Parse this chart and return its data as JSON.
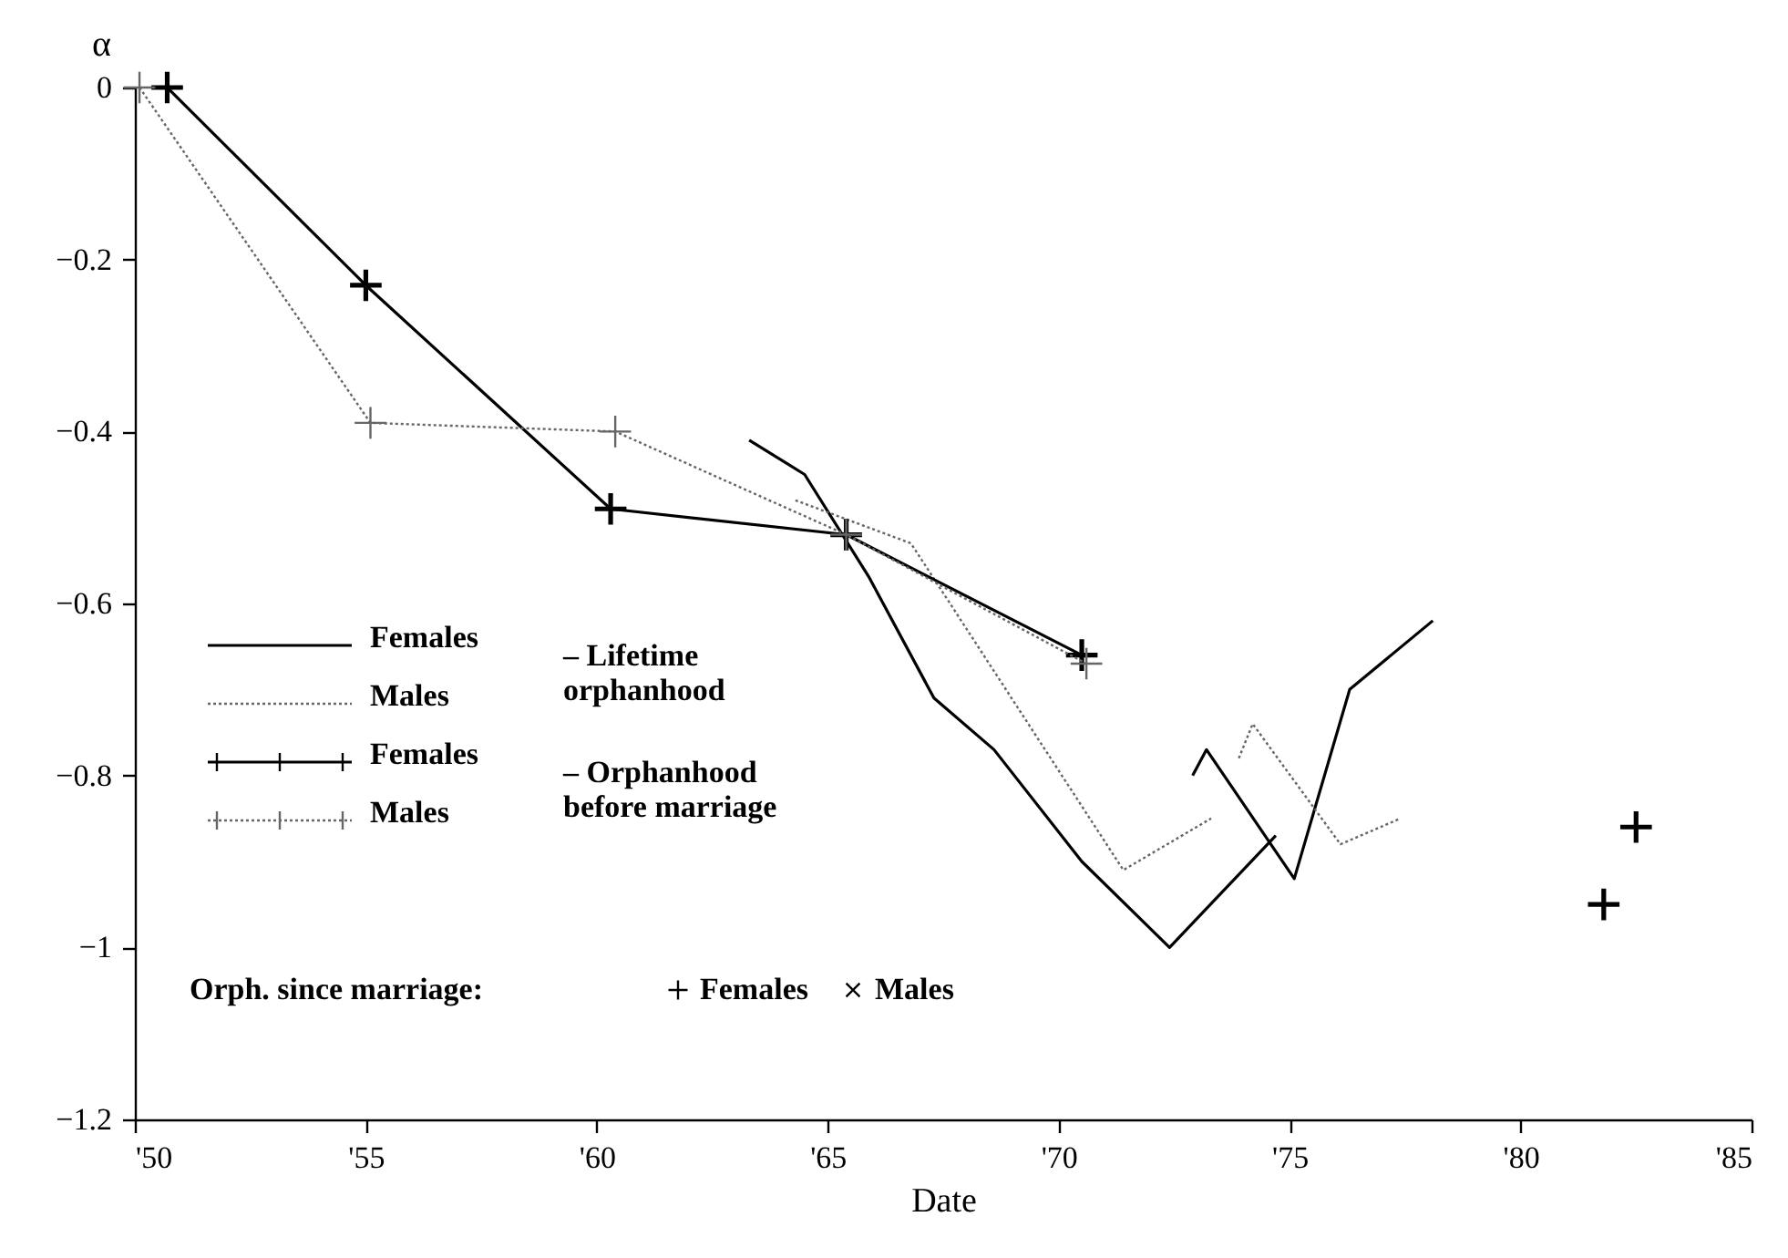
{
  "chart_data": {
    "type": "line",
    "xlabel": "Date",
    "ylabel": "α",
    "xlim": [
      50,
      85
    ],
    "xticks": [
      {
        "value": 50,
        "label": "'50"
      },
      {
        "value": 55,
        "label": "'55"
      },
      {
        "value": 60,
        "label": "'60"
      },
      {
        "value": 65,
        "label": "'65"
      },
      {
        "value": 70,
        "label": "'70"
      },
      {
        "value": 75,
        "label": "'75"
      },
      {
        "value": 80,
        "label": "'80"
      },
      {
        "value": 85,
        "label": "'85"
      }
    ],
    "ylim": [
      -1.2,
      0
    ],
    "yticks": [
      0,
      -0.2,
      -0.4,
      -0.6,
      -0.8,
      -1,
      -1.2
    ],
    "legend": "bottom left",
    "annotations": [
      "– Lifetime\norphanhood",
      "– Orphanhood\nbefore marriage",
      "Orph. since marriage:"
    ],
    "series": [
      {
        "name": "Females",
        "type": "line",
        "color": "#000000",
        "line_style": "solid",
        "marker": "none",
        "x": [
          63.3,
          64.5,
          65.9,
          67.3,
          68.6,
          70.5,
          72.4,
          74.7,
          null,
          72.9,
          73.2,
          75.1,
          76.3,
          78.1
        ],
        "values": [
          -0.41,
          -0.45,
          -0.57,
          -0.71,
          -0.77,
          -0.9,
          -1.0,
          -0.87,
          null,
          -0.8,
          -0.77,
          -0.92,
          -0.7,
          -0.62
        ]
      },
      {
        "name": "Males",
        "type": "line",
        "color": "#666666",
        "line_style": "dotted",
        "marker": "none",
        "x": [
          64.3,
          66.8,
          71.4,
          73.3,
          null,
          73.9,
          74.2,
          76.1,
          77.4
        ],
        "values": [
          -0.48,
          -0.53,
          -0.91,
          -0.85,
          null,
          -0.78,
          -0.74,
          -0.88,
          -0.85
        ]
      },
      {
        "name": "Females",
        "type": "line",
        "color": "#000000",
        "line_style": "solid",
        "marker": "cross",
        "x": [
          50.7,
          55.0,
          60.3,
          65.4,
          70.5
        ],
        "values": [
          0,
          -0.23,
          -0.49,
          -0.52,
          -0.66
        ]
      },
      {
        "name": "Males",
        "type": "line",
        "color": "#666666",
        "line_style": "dotted",
        "marker": "cross",
        "x": [
          50.1,
          55.1,
          60.4,
          65.4,
          70.6
        ],
        "values": [
          0,
          -0.39,
          -0.4,
          -0.52,
          -0.67
        ]
      },
      {
        "name": "Females",
        "type": "scatter",
        "color": "#000000",
        "marker": "cross",
        "x": [
          81.8
        ],
        "values": [
          -0.95
        ]
      },
      {
        "name": "Males",
        "type": "scatter",
        "color": "#000000",
        "marker": "cross",
        "x": [
          82.5
        ],
        "values": [
          -0.86
        ]
      }
    ]
  }
}
